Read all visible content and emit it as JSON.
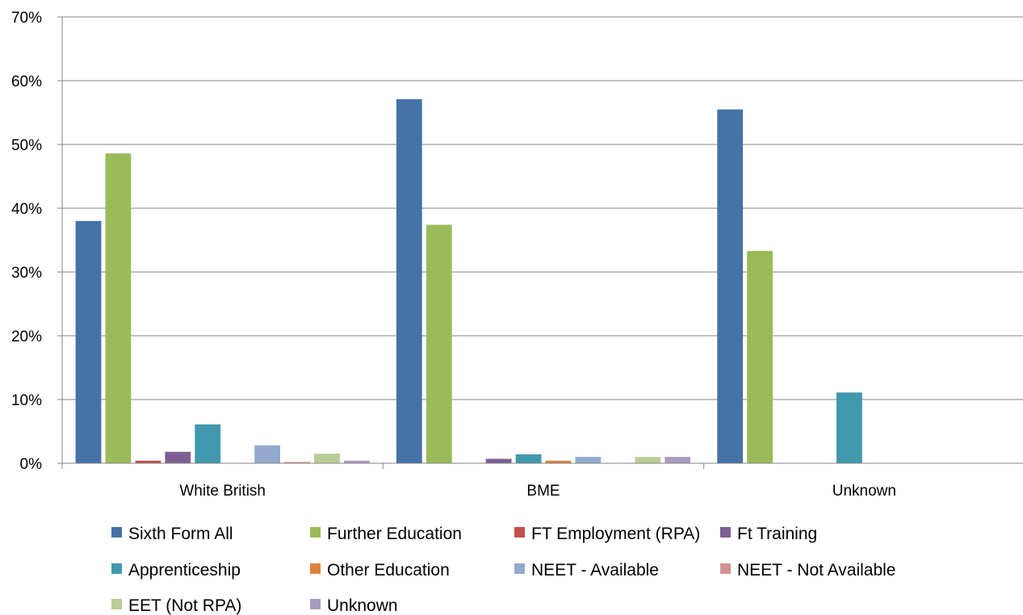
{
  "chart_data": {
    "type": "bar",
    "title": "",
    "xlabel": "",
    "ylabel": "",
    "ylim": [
      0,
      70
    ],
    "yticks": [
      "0%",
      "10%",
      "20%",
      "30%",
      "40%",
      "50%",
      "60%",
      "70%"
    ],
    "grid": true,
    "legend_position": "bottom",
    "categories": [
      "White British",
      "BME",
      "Unknown"
    ],
    "series": [
      {
        "name": "Sixth Form All",
        "color": "#4572A7",
        "values": [
          38.0,
          57.1,
          55.5
        ]
      },
      {
        "name": "Further Education",
        "color": "#9BBB59",
        "values": [
          48.6,
          37.4,
          33.3
        ]
      },
      {
        "name": "FT Employment (RPA)",
        "color": "#C0504D",
        "values": [
          0.4,
          0,
          0
        ]
      },
      {
        "name": "Ft Training",
        "color": "#7E5E92",
        "values": [
          1.8,
          0.7,
          0
        ]
      },
      {
        "name": "Apprenticeship",
        "color": "#4198AF",
        "values": [
          6.1,
          1.4,
          11.1
        ]
      },
      {
        "name": "Other Education",
        "color": "#DB843D",
        "values": [
          0,
          0.4,
          0
        ]
      },
      {
        "name": "NEET - Available",
        "color": "#93A9CF",
        "values": [
          2.8,
          1.0,
          0
        ]
      },
      {
        "name": "NEET - Not Available",
        "color": "#D19392",
        "values": [
          0.2,
          0,
          0
        ]
      },
      {
        "name": "EET (Not RPA)",
        "color": "#B9CD96",
        "values": [
          1.5,
          1.0,
          0
        ]
      },
      {
        "name": "Unknown",
        "color": "#A99BBD",
        "values": [
          0.4,
          1.0,
          0
        ]
      }
    ]
  }
}
